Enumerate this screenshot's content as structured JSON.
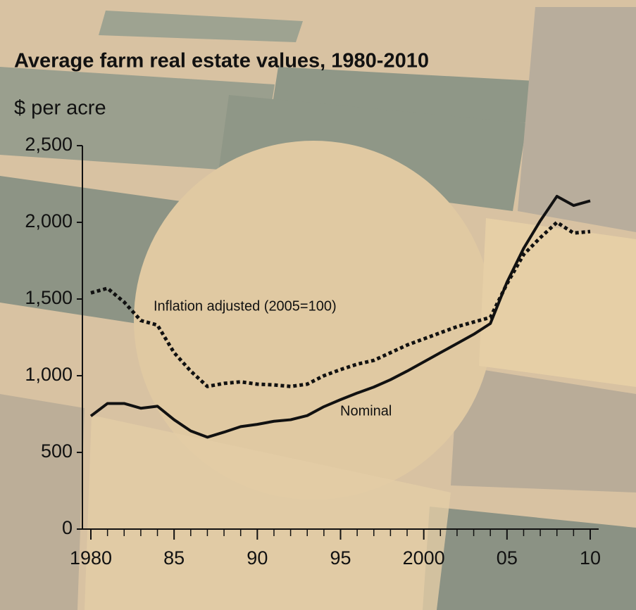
{
  "chart_data": {
    "type": "line",
    "title": "Average farm real estate values, 1980-2010",
    "subtitle": "$ per acre",
    "x": [
      1980,
      1981,
      1982,
      1983,
      1984,
      1985,
      1986,
      1987,
      1988,
      1989,
      1990,
      1991,
      1992,
      1993,
      1994,
      1995,
      1996,
      1997,
      1998,
      1999,
      2000,
      2001,
      2002,
      2003,
      2004,
      2005,
      2006,
      2007,
      2008,
      2009,
      2010
    ],
    "series": [
      {
        "name": "Nominal",
        "color": "#111111",
        "style": "solid",
        "values": [
          737,
          819,
          819,
          788,
          801,
          713,
          640,
          599,
          632,
          668,
          683,
          703,
          713,
          740,
          798,
          844,
          887,
          926,
          974,
          1030,
          1090,
          1150,
          1210,
          1270,
          1340,
          1610,
          1830,
          2010,
          2170,
          2110,
          2140
        ]
      },
      {
        "name": "Inflation adjusted (2005=100)",
        "color": "#111111",
        "style": "dotted",
        "values": [
          1540,
          1570,
          1480,
          1360,
          1330,
          1150,
          1030,
          930,
          950,
          960,
          945,
          940,
          930,
          945,
          1000,
          1040,
          1075,
          1100,
          1150,
          1200,
          1240,
          1280,
          1320,
          1350,
          1380,
          1600,
          1790,
          1900,
          2000,
          1930,
          1940
        ]
      }
    ],
    "xlim": [
      1980,
      2010
    ],
    "xticks": [
      {
        "value": 1980,
        "label": "1980"
      },
      {
        "value": 1985,
        "label": "85"
      },
      {
        "value": 1990,
        "label": "90"
      },
      {
        "value": 1995,
        "label": "95"
      },
      {
        "value": 2000,
        "label": "2000"
      },
      {
        "value": 2005,
        "label": "05"
      },
      {
        "value": 2010,
        "label": "10"
      }
    ],
    "xminorticks": [
      1981,
      1982,
      1983,
      1984,
      1986,
      1987,
      1988,
      1989,
      1991,
      1992,
      1993,
      1994,
      1996,
      1997,
      1998,
      1999,
      2001,
      2002,
      2003,
      2004,
      2006,
      2007,
      2008,
      2009
    ],
    "ylim": [
      0,
      2500
    ],
    "yticks": [
      0,
      500,
      {
        "value": 1000,
        "label": "1,000"
      },
      {
        "value": 1500,
        "label": "1,500"
      },
      {
        "value": 2000,
        "label": "2,000"
      },
      {
        "value": 2500,
        "label": "2,500"
      }
    ],
    "grid": false
  }
}
